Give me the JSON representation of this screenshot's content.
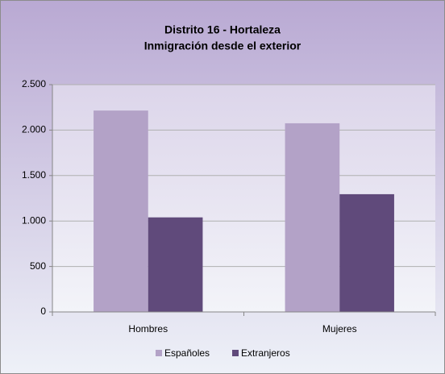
{
  "chart_data": {
    "type": "bar",
    "title": [
      "Distrito 16 - Hortaleza",
      "Inmigración desde el exterior"
    ],
    "categories": [
      "Hombres",
      "Mujeres"
    ],
    "series": [
      {
        "name": "Españoles",
        "color": "#b3a2c7",
        "values": [
          2215,
          2075
        ]
      },
      {
        "name": "Extranjeros",
        "color": "#604a7b",
        "values": [
          1040,
          1295
        ]
      }
    ],
    "ylim": [
      0,
      2500
    ],
    "yticks": [
      0,
      500,
      {
        "value": 1000,
        "label": "1.000"
      },
      {
        "value": 1500,
        "label": "1.500"
      },
      {
        "value": 2000,
        "label": "2.000"
      },
      {
        "value": 2500,
        "label": "2.500"
      }
    ],
    "grid": true,
    "legend": "bottom"
  }
}
